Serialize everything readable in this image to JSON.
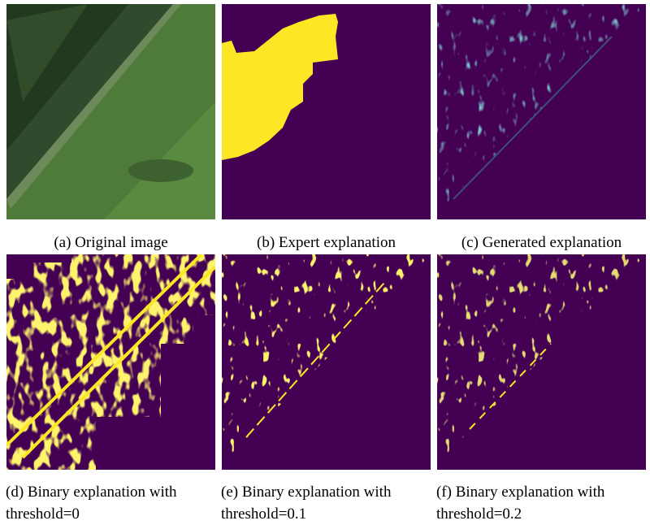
{
  "figures": [
    {
      "caption": "(a) Original image"
    },
    {
      "caption": "(b) Expert explanation"
    },
    {
      "caption": "(c) Generated explanation"
    },
    {
      "caption": "(d) Binary explanation with threshold=0"
    },
    {
      "caption": "(e) Binary explanation with threshold=0.1"
    },
    {
      "caption": "(f) Binary explanation with threshold=0.2"
    }
  ]
}
